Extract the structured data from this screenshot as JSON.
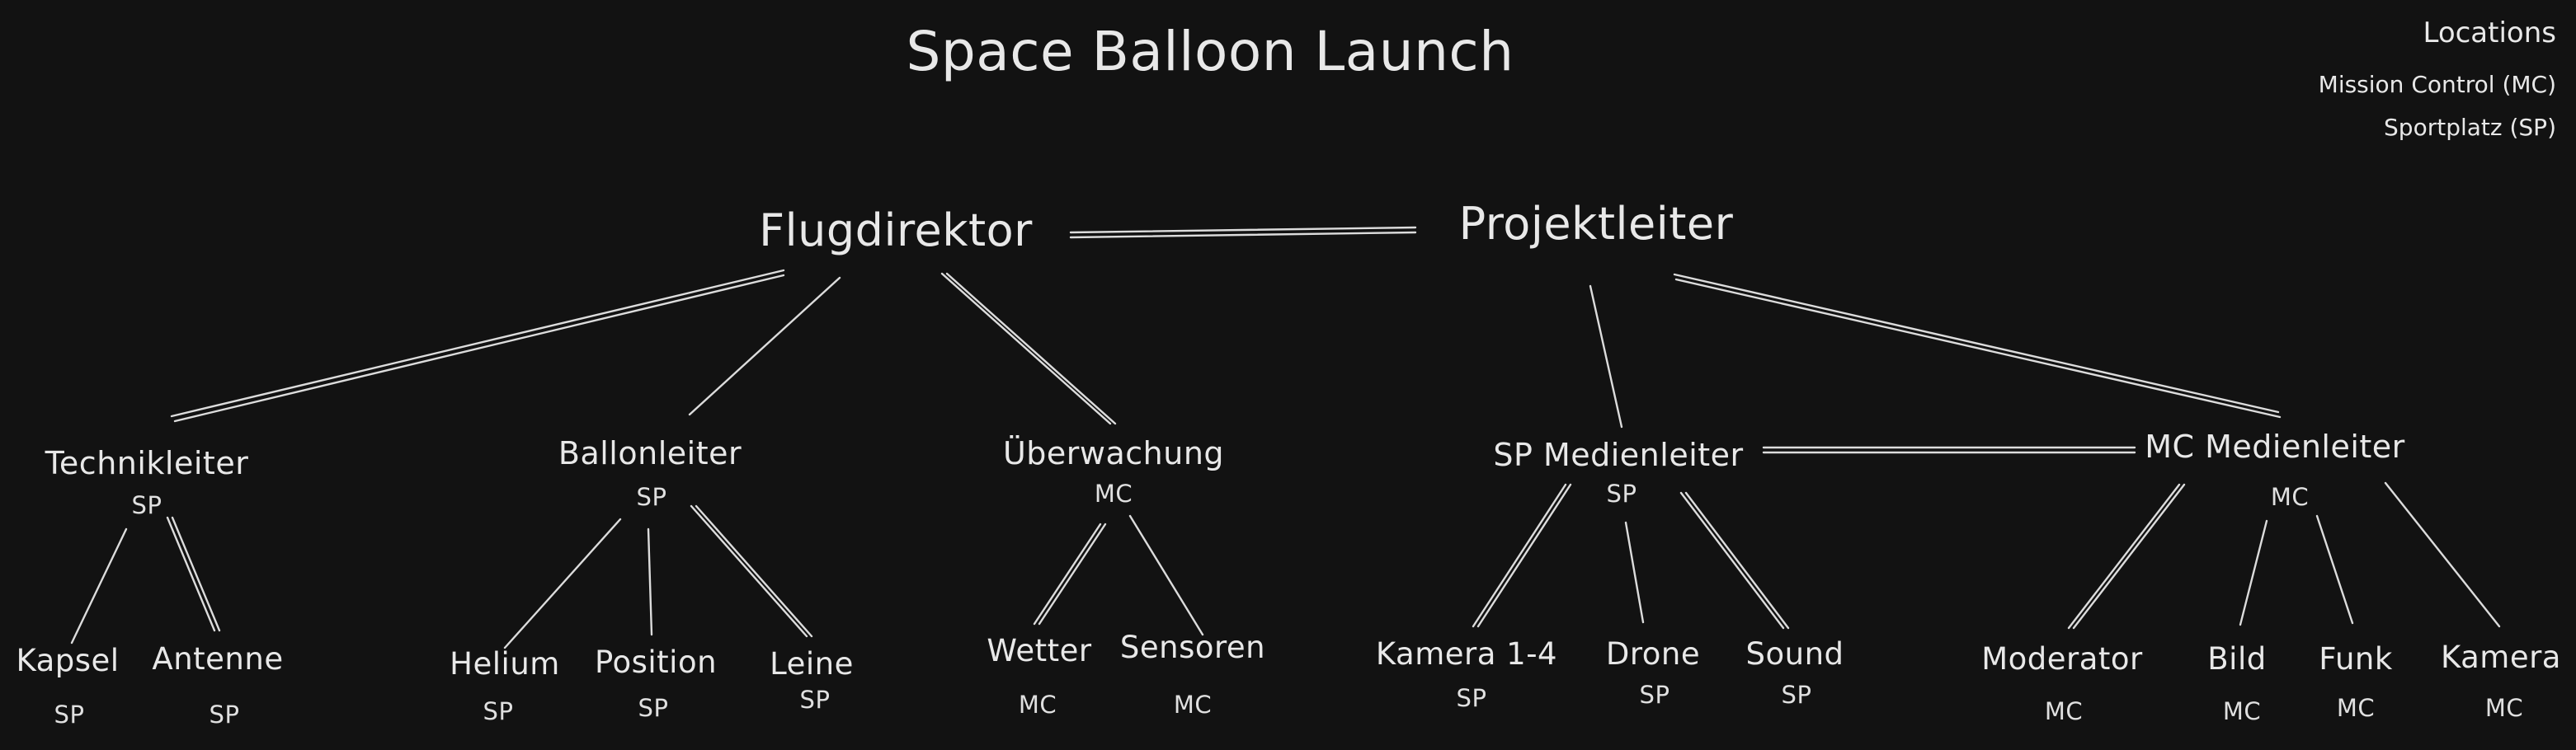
{
  "title": "Space Balloon Launch",
  "legend": {
    "title": "Locations",
    "items": [
      "Mission Control (MC)",
      "Sportplatz (SP)"
    ]
  },
  "leads": {
    "flight": "Flugdirektor",
    "project": "Projektleiter"
  },
  "roles": {
    "tech": {
      "name": "Technikleiter",
      "loc": "SP"
    },
    "balloon": {
      "name": "Ballonleiter",
      "loc": "SP"
    },
    "monitor": {
      "name": "Überwachung",
      "loc": "MC"
    },
    "sp_media": {
      "name": "SP Medienleiter",
      "loc": "SP"
    },
    "mc_media": {
      "name": "MC Medienleiter",
      "loc": "MC"
    }
  },
  "leaves": {
    "kapsel": {
      "name": "Kapsel",
      "loc": "SP"
    },
    "antenne": {
      "name": "Antenne",
      "loc": "SP"
    },
    "helium": {
      "name": "Helium",
      "loc": "SP"
    },
    "position": {
      "name": "Position",
      "loc": "SP"
    },
    "leine": {
      "name": "Leine",
      "loc": "SP"
    },
    "wetter": {
      "name": "Wetter",
      "loc": "MC"
    },
    "sensoren": {
      "name": "Sensoren",
      "loc": "MC"
    },
    "kamera14": {
      "name": "Kamera 1-4",
      "loc": "SP"
    },
    "drone": {
      "name": "Drone",
      "loc": "SP"
    },
    "sound": {
      "name": "Sound",
      "loc": "SP"
    },
    "moderator": {
      "name": "Moderator",
      "loc": "MC"
    },
    "bild": {
      "name": "Bild",
      "loc": "MC"
    },
    "funk": {
      "name": "Funk",
      "loc": "MC"
    },
    "kamera": {
      "name": "Kamera",
      "loc": "MC"
    }
  }
}
